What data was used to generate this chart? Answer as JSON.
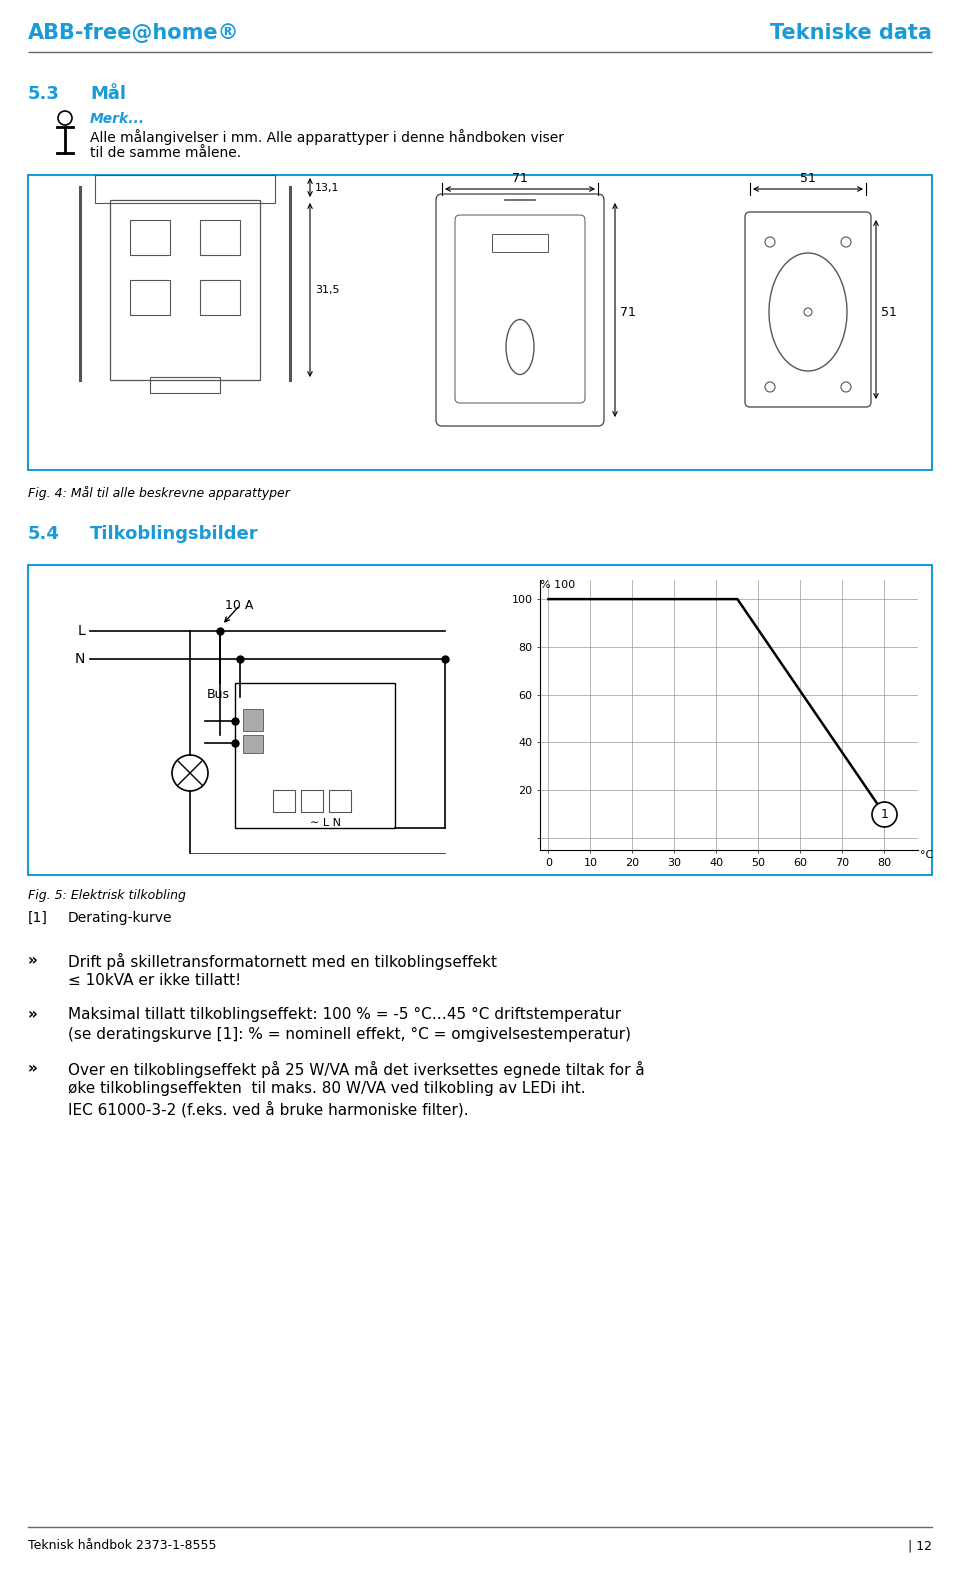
{
  "header_left": "ABB-free@home®",
  "header_right": "Tekniske data",
  "header_color": "#1a9bd7",
  "header_line_color": "#666666",
  "section_53_num": "5.3",
  "section_53_title": "Mål",
  "note_title": "Merk...",
  "note_text1": "Alle målangivelser i mm. Alle apparattyper i denne håndboken viser",
  "note_text2": "til de samme målene.",
  "fig4_caption": "Fig. 4: Mål til alle beskrevne apparattyper",
  "dim_71_top": "71",
  "dim_71_side": "71",
  "dim_51_top": "51",
  "dim_51_side": "51",
  "dim_131": "13,1",
  "dim_315": "31,5",
  "section_54_num": "5.4",
  "section_54_title": "Tilkoblingsbilder",
  "label_10A": "10 A",
  "label_L": "L",
  "label_N": "N",
  "label_Bus": "Bus",
  "label_LN": "∼ L N",
  "graph_circle_label": "1",
  "fig5_caption": "Fig. 5: Elektrisk tilkobling",
  "legend_1": "[1]",
  "legend_1_text": "Derating-kurve",
  "bullet1": "»",
  "text1a": "Drift på skilletransformatornett med en tilkoblingseffekt",
  "text1b": "≤ 10kVA er ikke tillatt!",
  "bullet2": "»",
  "text2a": "Maksimal tillatt tilkoblingseffekt: 100 % = -5 °C…45 °C driftstemperatur",
  "text2b": "(se deratingskurve [1]: % = nominell effekt, °C = omgivelsestemperatur)",
  "bullet3": "»",
  "text3a": "Over en tilkoblingseffekt på 25 W/VA må det iverksettes egnede tiltak for å",
  "text3b": "øke tilkoblingseffekten  til maks. 80 W/VA ved tilkobling av LEDi iht.",
  "text3c": "IEC 61000-3-2 (f.eks. ved å bruke harmoniske filter).",
  "footer_left": "Teknisk håndbok 2373-1-8555",
  "footer_right": "| 12",
  "footer_line_color": "#666666",
  "box_border_color": "#1a9bd7",
  "blue_color": "#1a9bd7",
  "gray_color": "#888888"
}
